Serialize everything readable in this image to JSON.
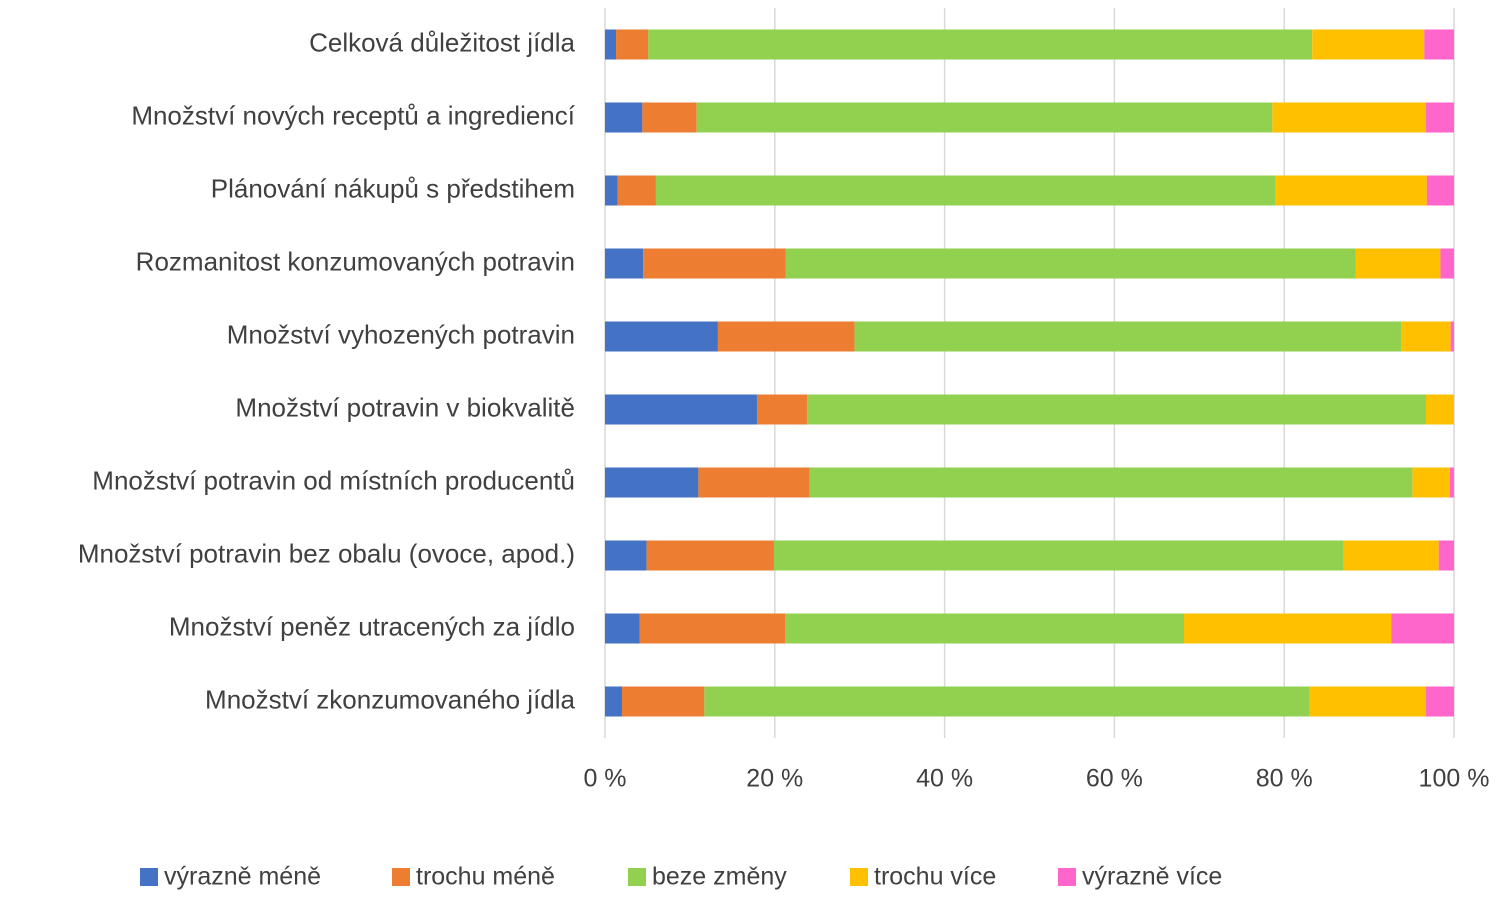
{
  "chart_data": {
    "type": "stacked_bar_horizontal",
    "categories": [
      "Celková důležitost jídla",
      "Množství nových receptů a ingrediencí",
      "Plánování nákupů s předstihem",
      "Rozmanitost konzumovaných potravin",
      "Množství vyhozených potravin",
      "Množství potravin v biokvalitě",
      "Množství potravin od místních producentů",
      "Množství potravin bez obalu (ovoce, apod.)",
      "Množství peněz utracených za jídlo",
      "Množství zkonzumovaného jídla"
    ],
    "series": [
      {
        "name": "výrazně méně",
        "color": "#4472c4",
        "values": [
          1.3,
          4.4,
          1.5,
          4.5,
          13.3,
          17.9,
          11.0,
          4.9,
          4.1,
          2.0
        ]
      },
      {
        "name": "trochu méně",
        "color": "#ed7d31",
        "values": [
          3.8,
          6.4,
          4.5,
          16.8,
          16.1,
          5.9,
          13.1,
          15.0,
          17.1,
          9.7
        ]
      },
      {
        "name": "beze změny",
        "color": "#92d050",
        "values": [
          78.2,
          67.8,
          73.0,
          67.1,
          64.4,
          72.9,
          71.0,
          67.1,
          47.0,
          71.3
        ]
      },
      {
        "name": "trochu více",
        "color": "#ffc000",
        "values": [
          13.2,
          18.1,
          17.8,
          10.0,
          5.8,
          3.3,
          4.4,
          11.2,
          24.4,
          13.7
        ]
      },
      {
        "name": "výrazně více",
        "color": "#ff66cc",
        "values": [
          3.5,
          3.3,
          3.2,
          1.6,
          0.4,
          0,
          0.5,
          1.8,
          7.4,
          3.3
        ]
      }
    ],
    "xlim": [
      0,
      100
    ],
    "xticks": [
      {
        "value": 0,
        "label": "0 %"
      },
      {
        "value": 20,
        "label": "20 %"
      },
      {
        "value": 40,
        "label": "40 %"
      },
      {
        "value": 60,
        "label": "60 %"
      },
      {
        "value": 80,
        "label": "80 %"
      },
      {
        "value": 100,
        "label": "100 %"
      }
    ],
    "grid": true,
    "legend": "bottom"
  }
}
